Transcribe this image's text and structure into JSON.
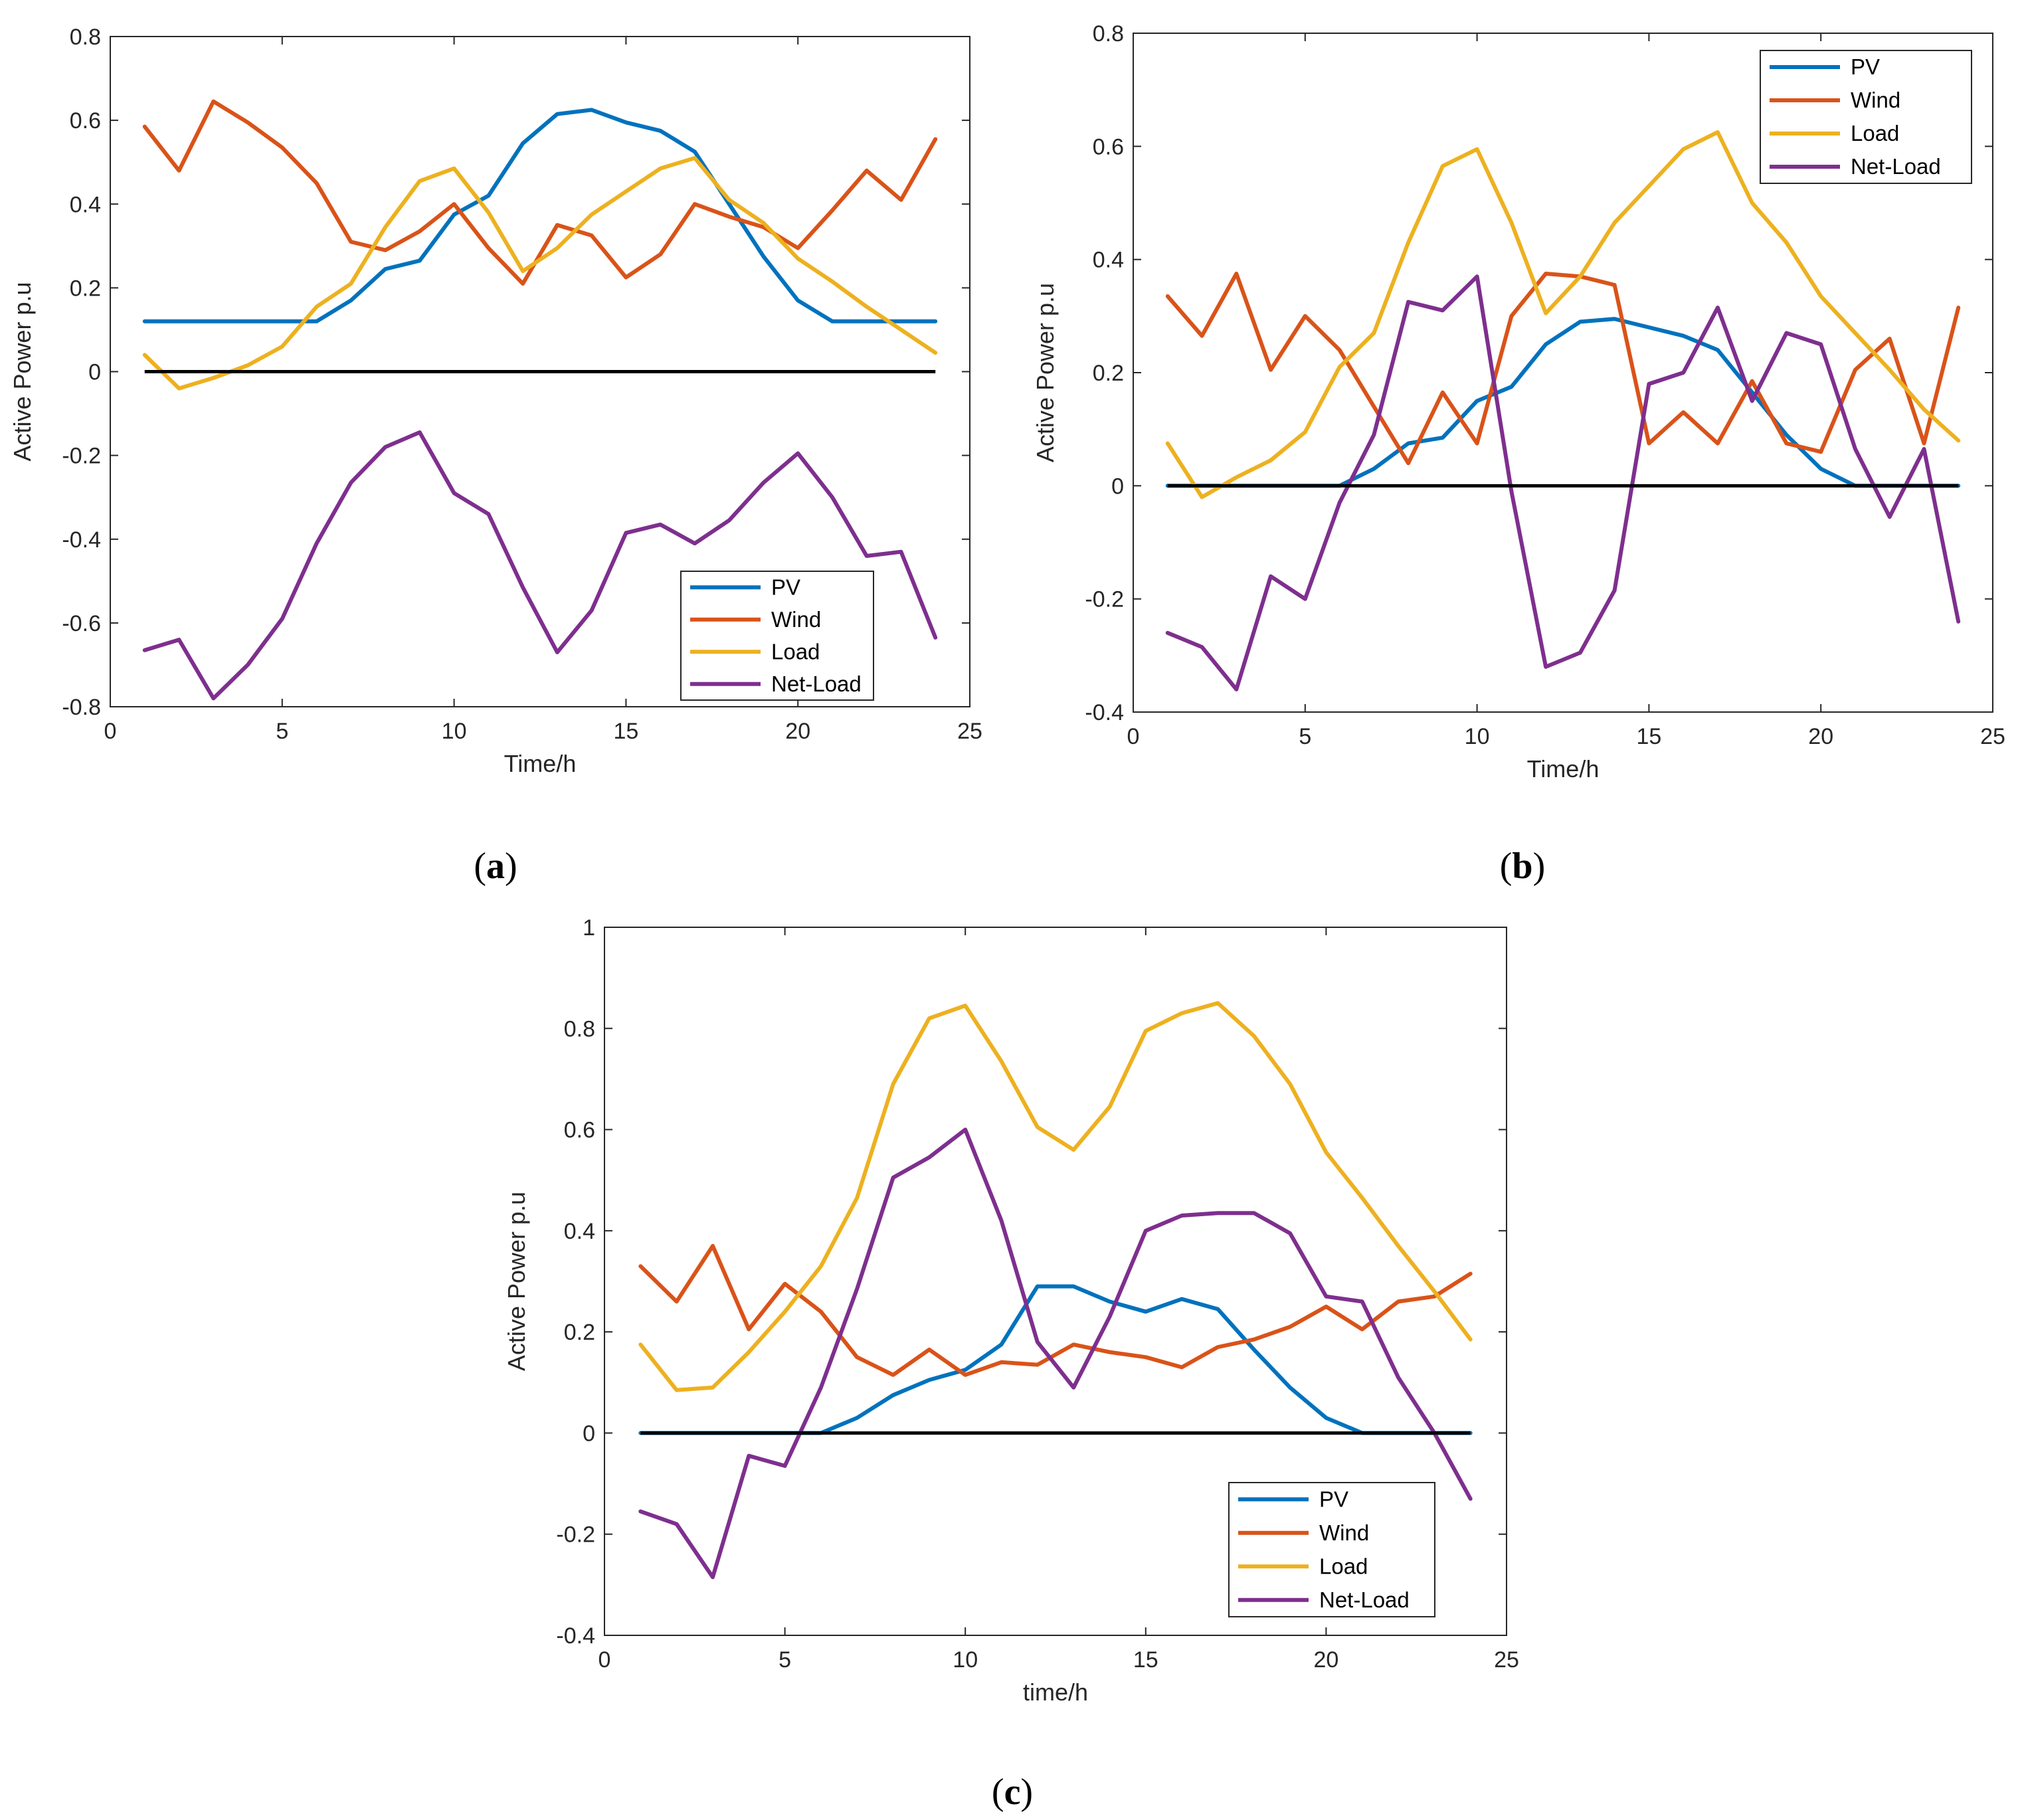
{
  "colors": {
    "PV": "#0072BD",
    "Wind": "#D95319",
    "Load": "#EDB120",
    "Net-Load": "#7E2F8E",
    "zero_line": "#000000"
  },
  "chart_data": [
    {
      "type": "line",
      "panel": "(a)",
      "caption_letter": "a",
      "xlabel": "Time/h",
      "ylabel": "Active Power p.u",
      "xlim": [
        0,
        25
      ],
      "ylim": [
        -0.8,
        0.8
      ],
      "xticks": [
        0,
        5,
        10,
        15,
        20,
        25
      ],
      "yticks": [
        -0.8,
        -0.6,
        -0.4,
        -0.2,
        0,
        0.2,
        0.4,
        0.6,
        0.8
      ],
      "ytick_labels": [
        "-0.8",
        "-0.6",
        "-0.4",
        "-0.2",
        "0",
        "0.2",
        "0.4",
        "0.6",
        "0.8"
      ],
      "legend_position": "bottom-right",
      "x": [
        1,
        2,
        3,
        4,
        5,
        6,
        7,
        8,
        9,
        10,
        11,
        12,
        13,
        14,
        15,
        16,
        17,
        18,
        19,
        20,
        21,
        22,
        23,
        24
      ],
      "series": [
        {
          "name": "PV",
          "values": [
            0.12,
            0.12,
            0.12,
            0.12,
            0.12,
            0.12,
            0.17,
            0.245,
            0.265,
            0.375,
            0.42,
            0.545,
            0.615,
            0.625,
            0.595,
            0.575,
            0.525,
            0.4,
            0.275,
            0.17,
            0.12,
            0.12,
            0.12,
            0.12
          ]
        },
        {
          "name": "Wind",
          "values": [
            0.585,
            0.48,
            0.645,
            0.595,
            0.535,
            0.45,
            0.31,
            0.29,
            0.335,
            0.4,
            0.295,
            0.21,
            0.35,
            0.325,
            0.225,
            0.28,
            0.4,
            0.37,
            0.345,
            0.295,
            0.385,
            0.48,
            0.41,
            0.555
          ]
        },
        {
          "name": "Load",
          "values": [
            0.04,
            -0.04,
            -0.015,
            0.015,
            0.06,
            0.155,
            0.21,
            0.345,
            0.455,
            0.485,
            0.38,
            0.24,
            0.295,
            0.375,
            0.43,
            0.485,
            0.51,
            0.41,
            0.355,
            0.27,
            0.215,
            0.155,
            0.1,
            0.045
          ]
        },
        {
          "name": "Net-Load",
          "values": [
            -0.665,
            -0.64,
            -0.78,
            -0.7,
            -0.59,
            -0.41,
            -0.265,
            -0.18,
            -0.145,
            -0.29,
            -0.34,
            -0.515,
            -0.67,
            -0.57,
            -0.385,
            -0.365,
            -0.41,
            -0.355,
            -0.265,
            -0.195,
            -0.3,
            -0.44,
            -0.43,
            -0.635
          ]
        }
      ]
    },
    {
      "type": "line",
      "panel": "(b)",
      "caption_letter": "b",
      "xlabel": "Time/h",
      "ylabel": "Active Power p.u",
      "xlim": [
        0,
        25
      ],
      "ylim": [
        -0.4,
        0.8
      ],
      "xticks": [
        0,
        5,
        10,
        15,
        20,
        25
      ],
      "yticks": [
        -0.4,
        -0.2,
        0,
        0.2,
        0.4,
        0.6,
        0.8
      ],
      "ytick_labels": [
        "-0.4",
        "-0.2",
        "0",
        "0.2",
        "0.4",
        "0.6",
        "0.8"
      ],
      "legend_position": "top-right",
      "x": [
        1,
        2,
        3,
        4,
        5,
        6,
        7,
        8,
        9,
        10,
        11,
        12,
        13,
        14,
        15,
        16,
        17,
        18,
        19,
        20,
        21,
        22,
        23,
        24
      ],
      "series": [
        {
          "name": "PV",
          "values": [
            0,
            0,
            0,
            0,
            0,
            0,
            0.03,
            0.075,
            0.085,
            0.15,
            0.175,
            0.25,
            0.29,
            0.295,
            0.28,
            0.265,
            0.24,
            0.165,
            0.09,
            0.03,
            0,
            0,
            0,
            0
          ]
        },
        {
          "name": "Wind",
          "values": [
            0.335,
            0.265,
            0.375,
            0.205,
            0.3,
            0.24,
            0.14,
            0.04,
            0.165,
            0.075,
            0.3,
            0.375,
            0.37,
            0.355,
            0.075,
            0.13,
            0.075,
            0.185,
            0.075,
            0.06,
            0.205,
            0.26,
            0.075,
            0.315
          ]
        },
        {
          "name": "Load",
          "values": [
            0.075,
            -0.02,
            0.015,
            0.045,
            0.095,
            0.21,
            0.27,
            0.43,
            0.565,
            0.595,
            0.465,
            0.305,
            0.37,
            0.465,
            0.53,
            0.595,
            0.625,
            0.5,
            0.43,
            0.335,
            0.27,
            0.205,
            0.135,
            0.08
          ]
        },
        {
          "name": "Net-Load",
          "values": [
            -0.26,
            -0.285,
            -0.36,
            -0.16,
            -0.2,
            -0.03,
            0.09,
            0.325,
            0.31,
            0.37,
            -0.01,
            -0.32,
            -0.295,
            -0.185,
            0.18,
            0.2,
            0.315,
            0.15,
            0.27,
            0.25,
            0.065,
            -0.055,
            0.065,
            -0.24
          ]
        }
      ]
    },
    {
      "type": "line",
      "panel": "(c)",
      "caption_letter": "c",
      "xlabel": "time/h",
      "ylabel": "Active Power p.u",
      "xlim": [
        0,
        25
      ],
      "ylim": [
        -0.4,
        1.0
      ],
      "xticks": [
        0,
        5,
        10,
        15,
        20,
        25
      ],
      "yticks": [
        -0.4,
        -0.2,
        0,
        0.2,
        0.4,
        0.6,
        0.8,
        1
      ],
      "ytick_labels": [
        "-0.4",
        "-0.2",
        "0",
        "0.2",
        "0.4",
        "0.6",
        "0.8",
        "1"
      ],
      "legend_position": "bottom-right",
      "x": [
        1,
        2,
        3,
        4,
        5,
        6,
        7,
        8,
        9,
        10,
        11,
        12,
        13,
        14,
        15,
        16,
        17,
        18,
        19,
        20,
        21,
        22,
        23,
        24
      ],
      "series": [
        {
          "name": "PV",
          "values": [
            0,
            0,
            0,
            0,
            0,
            0,
            0.03,
            0.075,
            0.105,
            0.125,
            0.175,
            0.29,
            0.29,
            0.26,
            0.24,
            0.265,
            0.245,
            0.165,
            0.09,
            0.03,
            0,
            0,
            0,
            0
          ]
        },
        {
          "name": "Wind",
          "values": [
            0.33,
            0.26,
            0.37,
            0.205,
            0.295,
            0.24,
            0.15,
            0.115,
            0.165,
            0.115,
            0.14,
            0.135,
            0.175,
            0.16,
            0.15,
            0.13,
            0.17,
            0.185,
            0.21,
            0.25,
            0.205,
            0.26,
            0.27,
            0.315
          ]
        },
        {
          "name": "Load",
          "values": [
            0.175,
            0.085,
            0.09,
            0.16,
            0.24,
            0.33,
            0.465,
            0.69,
            0.82,
            0.845,
            0.735,
            0.605,
            0.56,
            0.645,
            0.795,
            0.83,
            0.85,
            0.785,
            0.69,
            0.555,
            0.465,
            0.37,
            0.28,
            0.185
          ]
        },
        {
          "name": "Net-Load",
          "values": [
            -0.155,
            -0.18,
            -0.285,
            -0.045,
            -0.065,
            0.09,
            0.285,
            0.505,
            0.545,
            0.6,
            0.42,
            0.18,
            0.09,
            0.23,
            0.4,
            0.43,
            0.435,
            0.435,
            0.395,
            0.27,
            0.26,
            0.11,
            0.0,
            -0.13
          ]
        }
      ]
    }
  ]
}
